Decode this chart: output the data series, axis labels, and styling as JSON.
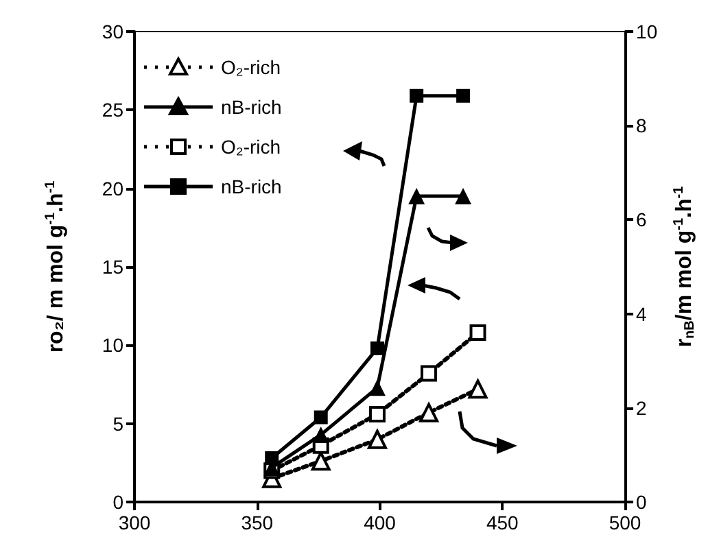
{
  "chart_data": {
    "type": "line",
    "xlim": [
      300,
      500
    ],
    "xticks": [
      300,
      350,
      400,
      450,
      500
    ],
    "ylim": [
      0,
      30
    ],
    "yticks": [
      0,
      5,
      10,
      15,
      20,
      25,
      30
    ],
    "y2lim": [
      0,
      10
    ],
    "y2ticks": [
      0,
      2,
      4,
      6,
      8,
      10
    ],
    "ylabel": "ro₂/ m mol g$^{-1}$.h$^{-1}$",
    "y2label": "r$_{nB}$/m mol g$^{-1}$.h$^{-1}$",
    "grid": false,
    "legend": "top left",
    "series": [
      {
        "name": "O₂-rich",
        "color": "#000000",
        "axis": "y2",
        "marker": "triangle",
        "line_style": "dotted",
        "x": [
          356,
          376,
          399,
          420,
          440
        ],
        "values": [
          0.5,
          0.87,
          1.33,
          1.9,
          2.4
        ]
      },
      {
        "name": "nB-rich",
        "color": "#000000",
        "axis": "y2",
        "marker": "triangle",
        "line_style": "solid",
        "x": [
          356,
          376,
          399,
          415,
          434
        ],
        "values": [
          0.73,
          1.43,
          2.43,
          6.5,
          6.5
        ]
      },
      {
        "name": "O₂-rich",
        "color": "#000000",
        "marker": "square",
        "line_style": "dotted",
        "x": [
          356,
          376,
          399,
          420,
          440
        ],
        "values": [
          2.0,
          3.6,
          5.6,
          8.2,
          10.8
        ]
      },
      {
        "name": "nB-rich",
        "color": "#000000",
        "marker": "square",
        "line_style": "solid",
        "x": [
          356,
          376,
          399,
          415,
          434
        ],
        "values": [
          2.8,
          5.4,
          9.8,
          25.9,
          25.9
        ]
      }
    ]
  }
}
